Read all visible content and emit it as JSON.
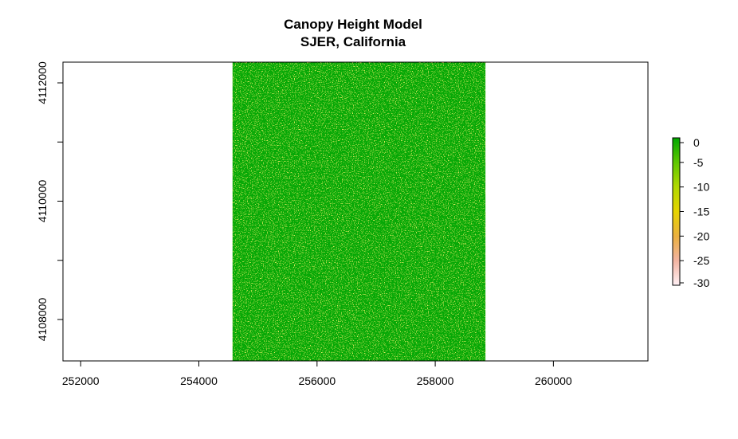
{
  "chart_data": {
    "type": "heatmap",
    "title": "Canopy Height Model",
    "subtitle": "SJER, California",
    "xlabel": "",
    "ylabel": "",
    "xlim": [
      251700,
      261600
    ],
    "ylim": [
      4107300,
      4112350
    ],
    "raster_extent": {
      "xmin": 254570,
      "xmax": 258850,
      "ymin": 4107300,
      "ymax": 4112350
    },
    "x_ticks": [
      252000,
      254000,
      256000,
      258000,
      260000
    ],
    "y_ticks": [
      4108000,
      4109000,
      4110000,
      4111000,
      4112000
    ],
    "y_tick_labels": [
      "4108000",
      "",
      "4110000",
      "",
      "4112000"
    ],
    "legend": {
      "placement": "right",
      "ticks": [
        0,
        -5,
        -10,
        -15,
        -20,
        -25,
        -30
      ],
      "range": [
        -30,
        0
      ],
      "colors": [
        "#FFF0F5",
        "#F2B3A0",
        "#EBB040",
        "#E6D400",
        "#B0D800",
        "#60C800",
        "#00A600"
      ]
    },
    "dominant_color": "#06A806",
    "speckle_color": "#D8DC20"
  }
}
